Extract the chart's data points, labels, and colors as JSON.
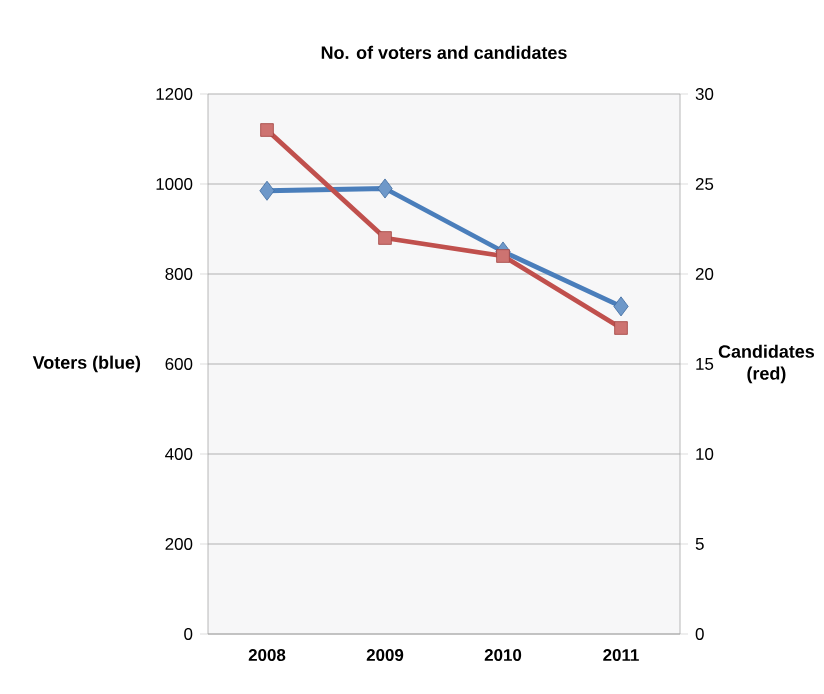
{
  "chart_data": {
    "type": "line",
    "title": "No. of voters and candidates",
    "ylabel": "Voters (blue)",
    "y2label": "Candidates (red)",
    "categories": [
      "2008",
      "2009",
      "2010",
      "2011"
    ],
    "series": [
      {
        "color": "#4a7ebb",
        "marker": "diamond",
        "values": [
          985,
          990,
          850,
          728
        ]
      },
      {
        "color": "#c0504d",
        "marker": "square",
        "axis": "y2",
        "values": [
          28,
          22,
          21,
          17
        ]
      }
    ],
    "ylim": [
      0,
      1200
    ],
    "yticks": [
      0,
      200,
      400,
      600,
      800,
      1000,
      1200
    ],
    "y2lim": [
      0,
      30
    ],
    "y2ticks": [
      0,
      5,
      10,
      15,
      20,
      25,
      30
    ],
    "grid": "y"
  }
}
